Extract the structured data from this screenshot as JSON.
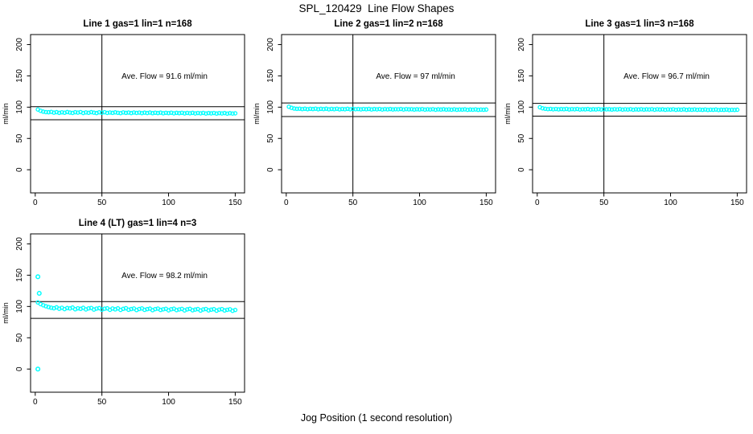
{
  "page_title": "SPL_120429  Line Flow Shapes",
  "x_axis_label": "Jog Position (1 second resolution)",
  "colors": {
    "point": "#00FFFF",
    "axis": "#000000",
    "background": "#FFFFFF"
  },
  "chart_data": [
    {
      "type": "scatter",
      "title": "Line 1 gas=1 lin=1 n=168",
      "annotation": "Ave. Flow =  91.6  ml/min",
      "ave_flow": 91.6,
      "ylabel": "ml/min",
      "xlim": [
        -3.5,
        157
      ],
      "ylim": [
        -37,
        216
      ],
      "x_ticks": [
        0,
        50,
        100,
        150
      ],
      "y_ticks": [
        0,
        50,
        100,
        150,
        200
      ],
      "vline_x": 50,
      "ref_lines": [
        100.8,
        79.8
      ],
      "x_start": 2,
      "x_step": 2,
      "y": [
        96.3,
        94.2,
        92.8,
        92.1,
        91.9,
        92.4,
        91.2,
        92.0,
        90.9,
        91.8,
        91.1,
        92.2,
        91.4,
        90.8,
        91.9,
        91.3,
        92.1,
        90.7,
        91.6,
        91.0,
        92.0,
        91.2,
        90.6,
        91.8,
        91.1,
        91.9,
        90.8,
        91.5,
        90.9,
        91.7,
        91.0,
        90.5,
        91.6,
        90.9,
        91.4,
        90.6,
        91.5,
        90.8,
        91.3,
        90.5,
        91.2,
        90.7,
        91.4,
        90.4,
        91.1,
        90.6,
        91.2,
        90.3,
        91.0,
        90.5,
        91.1,
        90.2,
        90.9,
        90.4,
        91.0,
        90.1,
        90.8,
        90.3,
        90.9,
        90.0,
        90.7,
        90.2,
        90.8,
        89.9,
        90.6,
        90.1,
        90.7,
        89.8,
        90.5,
        90.0,
        90.6,
        89.7,
        90.4,
        89.9,
        90.2
      ],
      "outliers": []
    },
    {
      "type": "scatter",
      "title": "Line 2 gas=1 lin=2 n=168",
      "annotation": "Ave. Flow =  97  ml/min",
      "ave_flow": 97,
      "ylabel": "ml/min",
      "xlim": [
        -3.5,
        157
      ],
      "ylim": [
        -37,
        216
      ],
      "x_ticks": [
        0,
        50,
        100,
        150
      ],
      "y_ticks": [
        0,
        50,
        100,
        150,
        200
      ],
      "vline_x": 50,
      "ref_lines": [
        106.7,
        85.0
      ],
      "x_start": 2,
      "x_step": 2,
      "y": [
        100.6,
        98.9,
        97.8,
        97.3,
        97.6,
        96.9,
        97.5,
        96.8,
        97.4,
        97.0,
        97.6,
        96.7,
        97.3,
        96.9,
        97.5,
        96.6,
        97.2,
        96.8,
        97.4,
        96.5,
        97.1,
        96.7,
        97.3,
        96.6,
        97.2,
        96.8,
        97.0,
        96.5,
        97.1,
        96.7,
        97.2,
        96.4,
        97.0,
        96.6,
        97.1,
        96.3,
        96.9,
        96.5,
        97.0,
        96.4,
        96.8,
        96.6,
        97.1,
        96.3,
        96.9,
        96.5,
        96.8,
        96.2,
        96.7,
        96.4,
        96.9,
        96.1,
        96.6,
        96.3,
        96.8,
        96.0,
        96.5,
        96.2,
        96.7,
        96.1,
        96.4,
        96.0,
        96.6,
        95.9,
        96.3,
        96.1,
        96.5,
        95.8,
        96.2,
        96.0,
        96.4,
        95.7,
        96.1,
        95.9,
        96.2
      ],
      "outliers": []
    },
    {
      "type": "scatter",
      "title": "Line 3 gas=1 lin=3 n=168",
      "annotation": "Ave. Flow =  96.7  ml/min",
      "ave_flow": 96.7,
      "ylabel": "ml/min",
      "xlim": [
        -3.5,
        157
      ],
      "ylim": [
        -37,
        216
      ],
      "x_ticks": [
        0,
        50,
        100,
        150
      ],
      "y_ticks": [
        0,
        50,
        100,
        150,
        200
      ],
      "vline_x": 50,
      "ref_lines": [
        106.0,
        85.7
      ],
      "x_start": 2,
      "x_step": 2,
      "y": [
        99.8,
        98.2,
        97.4,
        96.9,
        97.2,
        96.6,
        97.1,
        96.5,
        97.0,
        96.7,
        97.2,
        96.4,
        96.9,
        96.6,
        97.1,
        96.3,
        96.8,
        96.5,
        97.0,
        96.2,
        96.7,
        96.4,
        96.9,
        96.3,
        96.8,
        96.5,
        96.7,
        96.2,
        96.8,
        96.4,
        96.9,
        96.1,
        96.6,
        96.3,
        96.8,
        96.0,
        96.5,
        96.2,
        96.7,
        96.1,
        96.5,
        96.3,
        96.8,
        96.0,
        96.6,
        96.2,
        96.5,
        95.9,
        96.4,
        96.1,
        96.6,
        95.8,
        96.3,
        96.0,
        96.5,
        95.7,
        96.2,
        95.9,
        96.4,
        95.8,
        96.1,
        95.7,
        96.3,
        95.6,
        96.0,
        95.8,
        96.2,
        95.5,
        95.9,
        95.7,
        96.1,
        95.4,
        95.8,
        95.6,
        95.9
      ],
      "outliers": []
    },
    {
      "type": "scatter",
      "title": "Line 4 (LT) gas=1 lin=4 n=3",
      "annotation": "Ave. Flow =  98.2  ml/min",
      "ave_flow": 98.2,
      "ylabel": "ml/min",
      "xlim": [
        -3.5,
        157
      ],
      "ylim": [
        -37,
        216
      ],
      "x_ticks": [
        0,
        50,
        100,
        150
      ],
      "y_ticks": [
        0,
        50,
        100,
        150,
        200
      ],
      "vline_x": 50,
      "ref_lines": [
        107.8,
        81.0
      ],
      "x_start": 2,
      "x_step": 2,
      "y": [
        106.5,
        103.8,
        101.9,
        100.4,
        99.1,
        98.0,
        97.2,
        98.6,
        96.4,
        97.9,
        95.8,
        97.5,
        96.9,
        98.3,
        95.6,
        97.1,
        96.2,
        97.8,
        95.3,
        96.9,
        97.6,
        95.1,
        96.6,
        97.3,
        94.9,
        96.4,
        97.1,
        94.7,
        96.8,
        95.4,
        97.0,
        94.5,
        96.2,
        97.2,
        94.8,
        95.9,
        96.8,
        94.3,
        96.0,
        96.9,
        94.6,
        95.7,
        96.5,
        94.1,
        95.8,
        96.6,
        94.4,
        95.5,
        96.3,
        93.9,
        95.6,
        96.4,
        94.2,
        95.3,
        96.1,
        93.7,
        95.4,
        96.2,
        94.0,
        95.1,
        95.9,
        93.5,
        95.2,
        96.0,
        93.8,
        94.9,
        95.7,
        93.3,
        95.0,
        95.8,
        93.6,
        94.7,
        95.5,
        93.1,
        94.4
      ],
      "outliers": [
        [
          2,
          0.0
        ],
        [
          2,
          147.5
        ],
        [
          3,
          121.0
        ]
      ]
    }
  ]
}
